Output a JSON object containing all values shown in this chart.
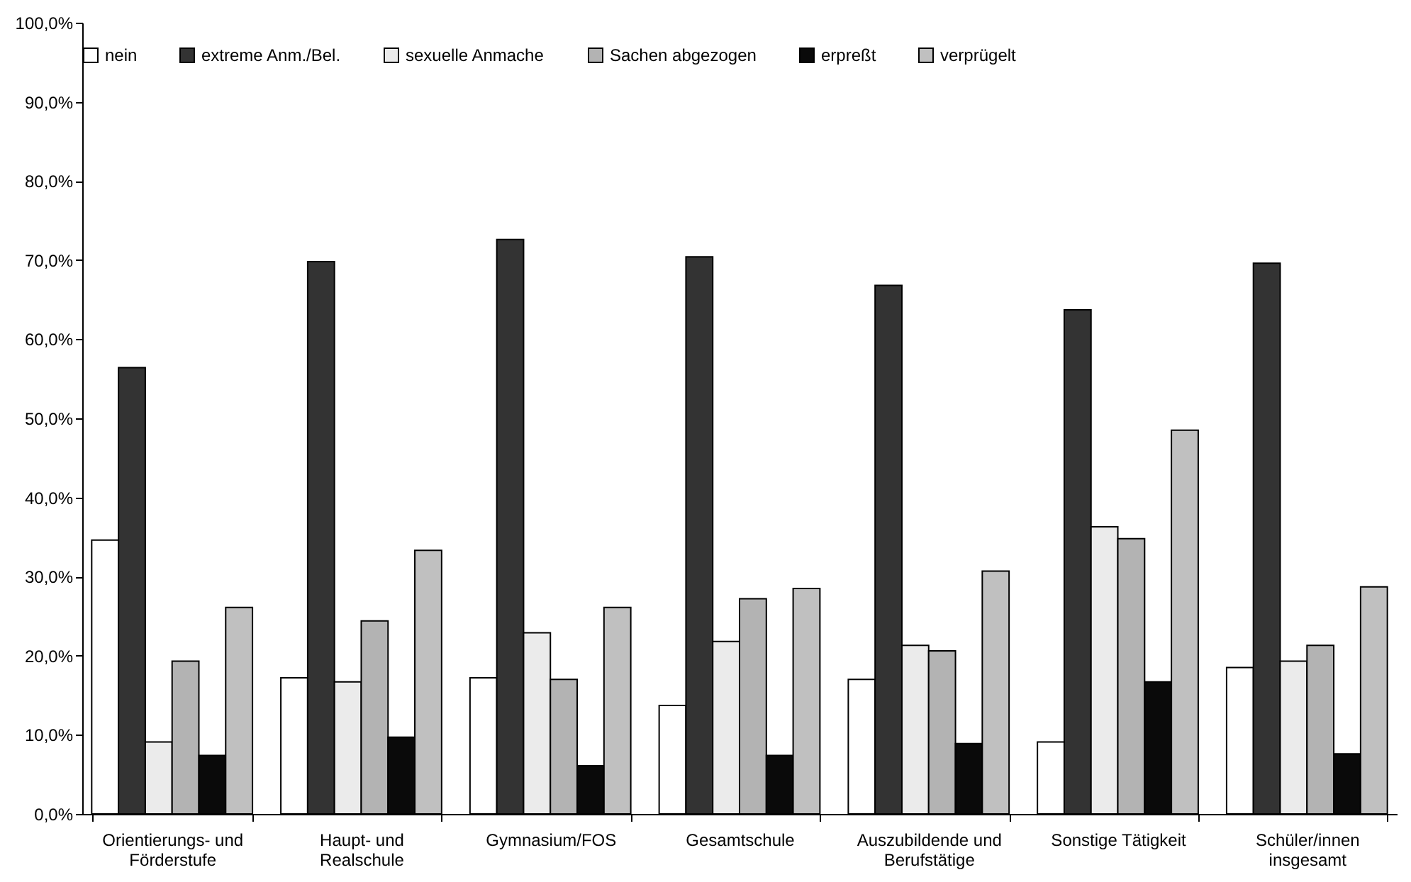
{
  "chart_data": {
    "type": "bar",
    "categories": [
      "Orientierungs- und Förderstufe",
      "Haupt- und Realschule",
      "Gymnasium/FOS",
      "Gesamtschule",
      "Auszubildende und Berufstätige",
      "Sonstige Tätigkeit",
      "Schüler/innen insgesamt"
    ],
    "series": [
      {
        "name": "nein",
        "color": "#ffffff",
        "values": [
          34.6,
          17.2,
          17.2,
          13.7,
          17.0,
          9.1,
          18.5
        ]
      },
      {
        "name": "extreme Anm./Bel.",
        "color": "#333333",
        "values": [
          56.4,
          69.8,
          72.6,
          70.4,
          66.8,
          63.7,
          69.6
        ]
      },
      {
        "name": "sexuelle Anmache",
        "color": "#ebebeb",
        "values": [
          9.1,
          16.7,
          22.9,
          21.8,
          21.3,
          36.3,
          19.3
        ]
      },
      {
        "name": "Sachen abgezogen",
        "color": "#b3b3b3",
        "values": [
          19.3,
          24.4,
          17.0,
          27.2,
          20.6,
          34.8,
          21.3
        ]
      },
      {
        "name": "erpreßt",
        "color": "#0a0a0a",
        "values": [
          7.4,
          9.7,
          6.1,
          7.4,
          8.9,
          16.7,
          7.6
        ]
      },
      {
        "name": "verprügelt",
        "color": "#c0c0c0",
        "values": [
          26.1,
          33.3,
          26.1,
          28.5,
          30.7,
          48.5,
          28.7
        ]
      }
    ],
    "ylim": [
      0,
      100
    ],
    "yticks": [
      {
        "value": 0,
        "label": "0,0%"
      },
      {
        "value": 10,
        "label": "10,0%"
      },
      {
        "value": 20,
        "label": "20,0%"
      },
      {
        "value": 30,
        "label": "30,0%"
      },
      {
        "value": 40,
        "label": "40,0%"
      },
      {
        "value": 50,
        "label": "50,0%"
      },
      {
        "value": 60,
        "label": "60,0%"
      },
      {
        "value": 70,
        "label": "70,0%"
      },
      {
        "value": 80,
        "label": "80,0%"
      },
      {
        "value": 90,
        "label": "90,0%"
      },
      {
        "value": 100,
        "label": "100,0%"
      }
    ],
    "grid": false,
    "legend": "top"
  }
}
